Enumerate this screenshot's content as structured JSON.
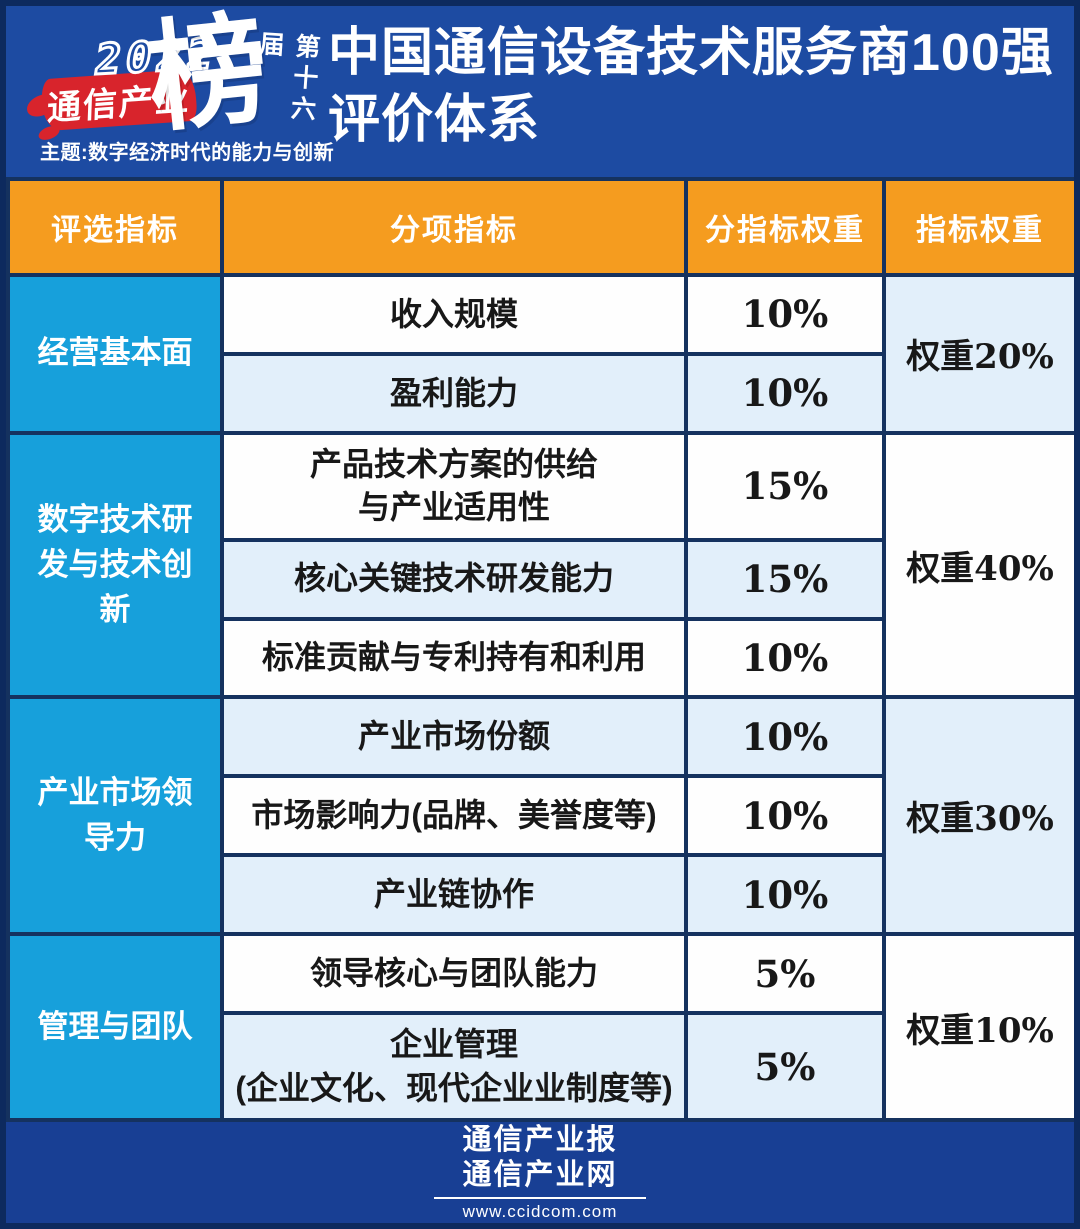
{
  "colors": {
    "page-blue": "#1d4ba2",
    "edge-navy": "#0d2a5e",
    "line-navy": "#15325f",
    "orange": "#f59c1f",
    "cyan": "#17a0db",
    "red": "#d8242c",
    "row-white": "#fefefe",
    "row-light": "#e2effa",
    "footer-blue": "#183f94",
    "ink": "#181818"
  },
  "header": {
    "logo": {
      "year": "2022",
      "brand": "通信产业",
      "big_char": "榜",
      "edition": "第十六届",
      "theme": "主题:数字经济时代的能力与创新"
    },
    "title_line1": "中国通信设备技术服务商100强",
    "title_line2": "评价体系"
  },
  "table": {
    "columns": [
      "评选指标",
      "分项指标",
      "分指标权重",
      "指标权重"
    ],
    "groups": [
      {
        "category": "经营基本面",
        "weight_label": "权重20%",
        "rows": [
          {
            "indicator": "收入规模",
            "weight": "10%"
          },
          {
            "indicator": "盈利能力",
            "weight": "10%"
          }
        ]
      },
      {
        "category": "数字技术研发与技术创新",
        "weight_label": "权重40%",
        "rows": [
          {
            "indicator": "产品技术方案的供给\n与产业适用性",
            "weight": "15%"
          },
          {
            "indicator": "核心关键技术研发能力",
            "weight": "15%"
          },
          {
            "indicator": "标准贡献与专利持有和利用",
            "weight": "10%"
          }
        ]
      },
      {
        "category": "产业市场领导力",
        "weight_label": "权重30%",
        "rows": [
          {
            "indicator": "产业市场份额",
            "weight": "10%"
          },
          {
            "indicator": "市场影响力(品牌、美誉度等)",
            "weight": "10%"
          },
          {
            "indicator": "产业链协作",
            "weight": "10%"
          }
        ]
      },
      {
        "category": "管理与团队",
        "weight_label": "权重10%",
        "rows": [
          {
            "indicator": "领导核心与团队能力",
            "weight": "5%"
          },
          {
            "indicator": "企业管理\n(企业文化、现代企业业制度等)",
            "weight": "5%"
          }
        ]
      }
    ]
  },
  "footer": {
    "line1": "通信产业报",
    "line2": "通信产业网",
    "url": "www.ccidcom.com"
  }
}
